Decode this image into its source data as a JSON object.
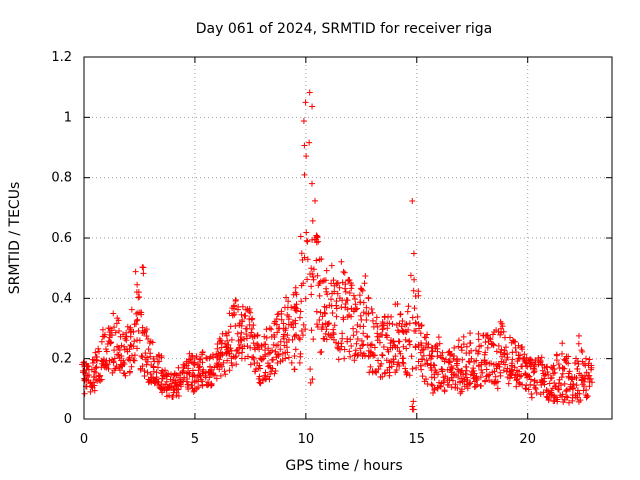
{
  "chart_data": {
    "type": "scatter",
    "title": "Day 061 of 2024, SRMTID for receiver riga",
    "xlabel": "GPS time / hours",
    "ylabel": "SRMTID / TECUs",
    "xlim": [
      0,
      23.8
    ],
    "ylim": [
      0,
      1.2
    ],
    "x_ticks": [
      0,
      5,
      10,
      15,
      20
    ],
    "x_tick_labels": [
      "0",
      "5",
      "10",
      "15",
      "20"
    ],
    "y_ticks": [
      0,
      0.2,
      0.4,
      0.6,
      0.8,
      1.0,
      1.2
    ],
    "y_tick_labels": [
      "0",
      "0.2",
      "0.4",
      "0.6",
      "0.8",
      "1",
      "1.2"
    ],
    "grid": true,
    "marker": "+",
    "series_color": "#ff0000",
    "series": [
      {
        "name": "SRMTID",
        "x": [
          0.0,
          0.2,
          0.4,
          0.6,
          0.8,
          1.0,
          1.2,
          1.4,
          1.6,
          1.8,
          2.0,
          2.2,
          2.4,
          2.6,
          2.8,
          3.0,
          3.2,
          3.4,
          3.6,
          3.8,
          4.0,
          4.2,
          4.4,
          4.6,
          4.8,
          5.0,
          5.2,
          5.4,
          5.6,
          5.8,
          6.0,
          6.2,
          6.4,
          6.6,
          6.8,
          7.0,
          7.2,
          7.4,
          7.6,
          7.8,
          8.0,
          8.2,
          8.4,
          8.6,
          8.8,
          9.0,
          9.2,
          9.4,
          9.6,
          9.8,
          10.0,
          10.2,
          10.4,
          10.6,
          10.8,
          11.0,
          11.2,
          11.4,
          11.6,
          11.8,
          12.0,
          12.2,
          12.4,
          12.6,
          12.8,
          13.0,
          13.2,
          13.4,
          13.6,
          13.8,
          14.0,
          14.2,
          14.4,
          14.6,
          14.8,
          15.0,
          15.2,
          15.4,
          15.6,
          15.8,
          16.0,
          16.2,
          16.4,
          16.6,
          16.8,
          17.0,
          17.2,
          17.4,
          17.6,
          17.8,
          18.0,
          18.2,
          18.4,
          18.6,
          18.8,
          19.0,
          19.2,
          19.4,
          19.6,
          19.8,
          20.0,
          20.2,
          20.4,
          20.6,
          20.8,
          21.0,
          21.2,
          21.4,
          21.6,
          21.8,
          22.0,
          22.2,
          22.4,
          22.6,
          22.8
        ],
        "y": [
          0.12,
          0.1,
          0.13,
          0.15,
          0.17,
          0.18,
          0.2,
          0.22,
          0.21,
          0.19,
          0.2,
          0.24,
          0.3,
          0.28,
          0.2,
          0.17,
          0.15,
          0.14,
          0.11,
          0.1,
          0.1,
          0.11,
          0.12,
          0.13,
          0.14,
          0.13,
          0.14,
          0.15,
          0.14,
          0.13,
          0.17,
          0.18,
          0.2,
          0.22,
          0.24,
          0.25,
          0.26,
          0.24,
          0.22,
          0.18,
          0.16,
          0.17,
          0.19,
          0.22,
          0.24,
          0.24,
          0.25,
          0.24,
          0.28,
          0.34,
          0.42,
          0.46,
          0.44,
          0.38,
          0.35,
          0.33,
          0.31,
          0.3,
          0.32,
          0.31,
          0.3,
          0.28,
          0.28,
          0.27,
          0.24,
          0.22,
          0.21,
          0.2,
          0.21,
          0.21,
          0.22,
          0.22,
          0.21,
          0.22,
          0.26,
          0.25,
          0.2,
          0.18,
          0.16,
          0.15,
          0.15,
          0.14,
          0.14,
          0.15,
          0.14,
          0.14,
          0.15,
          0.15,
          0.16,
          0.17,
          0.18,
          0.17,
          0.18,
          0.18,
          0.19,
          0.18,
          0.17,
          0.16,
          0.16,
          0.15,
          0.14,
          0.13,
          0.12,
          0.12,
          0.11,
          0.1,
          0.1,
          0.11,
          0.12,
          0.11,
          0.1,
          0.11,
          0.12,
          0.12,
          0.11
        ],
        "spread": [
          0.06,
          0.06,
          0.06,
          0.07,
          0.08,
          0.08,
          0.08,
          0.09,
          0.09,
          0.08,
          0.09,
          0.1,
          0.16,
          0.2,
          0.1,
          0.07,
          0.06,
          0.06,
          0.04,
          0.04,
          0.04,
          0.05,
          0.05,
          0.05,
          0.06,
          0.06,
          0.06,
          0.06,
          0.06,
          0.06,
          0.07,
          0.08,
          0.09,
          0.12,
          0.12,
          0.1,
          0.1,
          0.1,
          0.09,
          0.08,
          0.07,
          0.08,
          0.09,
          0.1,
          0.1,
          0.11,
          0.11,
          0.11,
          0.15,
          0.24,
          0.45,
          0.5,
          0.22,
          0.18,
          0.15,
          0.13,
          0.12,
          0.12,
          0.16,
          0.16,
          0.15,
          0.14,
          0.14,
          0.14,
          0.13,
          0.12,
          0.1,
          0.1,
          0.1,
          0.1,
          0.1,
          0.1,
          0.1,
          0.12,
          0.4,
          0.15,
          0.09,
          0.08,
          0.08,
          0.08,
          0.08,
          0.07,
          0.07,
          0.08,
          0.08,
          0.08,
          0.08,
          0.08,
          0.09,
          0.09,
          0.1,
          0.09,
          0.09,
          0.09,
          0.1,
          0.09,
          0.09,
          0.08,
          0.08,
          0.08,
          0.07,
          0.07,
          0.07,
          0.07,
          0.06,
          0.06,
          0.06,
          0.08,
          0.1,
          0.08,
          0.06,
          0.07,
          0.1,
          0.08,
          0.06
        ]
      }
    ]
  }
}
